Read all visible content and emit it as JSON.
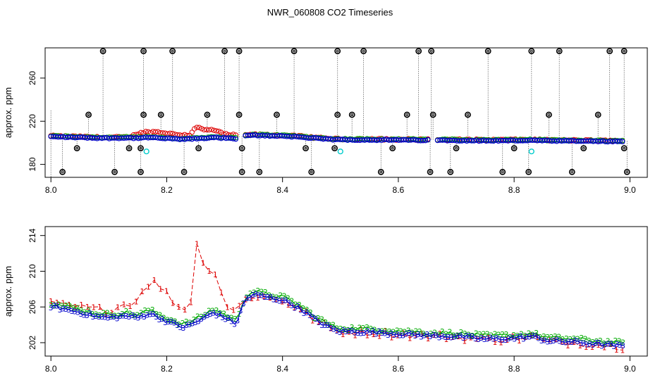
{
  "chart_data": {
    "title": "NWR_060808  CO2 Timeseries",
    "panels": [
      {
        "type": "scatter",
        "ylabel": "approx. ppm",
        "xlim": [
          7.99,
          9.03
        ],
        "ylim": [
          168,
          288
        ],
        "x_ticks": [
          "8.0",
          "8.2",
          "8.4",
          "8.6",
          "8.8",
          "9.0"
        ],
        "y_ticks": [
          "180",
          "220",
          "260"
        ],
        "colors": {
          "line": "#666666",
          "s1": "#dd0000",
          "s2": "#00aa00",
          "s3": "#0000cc",
          "flag": "#000000",
          "cyan": "#00cccc"
        },
        "flag_high": [
          8.09,
          8.16,
          8.21,
          8.3,
          8.325,
          8.42,
          8.495,
          8.54,
          8.635,
          8.657,
          8.755,
          8.83,
          8.878,
          8.965,
          8.99
        ],
        "flag_mid": [
          8.065,
          8.16,
          8.19,
          8.27,
          8.325,
          8.39,
          8.495,
          8.52,
          8.615,
          8.66,
          8.72,
          8.86,
          8.945
        ],
        "flag_low": [
          8.02,
          8.11,
          8.155,
          8.23,
          8.33,
          8.36,
          8.45,
          8.57,
          8.655,
          8.69,
          8.78,
          8.825,
          8.9,
          8.995
        ],
        "flag_dip": [
          8.045,
          8.135,
          8.155,
          8.255,
          8.33,
          8.44,
          8.49,
          8.59,
          8.7,
          8.8,
          8.92,
          8.99
        ],
        "cyan_points": [
          {
            "x": 8.165,
            "y": 192
          },
          {
            "x": 8.5,
            "y": 192
          },
          {
            "x": 8.83,
            "y": 192
          }
        ]
      },
      {
        "type": "line",
        "ylabel": "approx. ppm",
        "xlim": [
          7.99,
          9.03
        ],
        "ylim": [
          200.5,
          215
        ],
        "x_ticks": [
          "8.0",
          "8.2",
          "8.4",
          "8.6",
          "8.8",
          "9.0"
        ],
        "y_ticks": [
          "202",
          "206",
          "210",
          "214"
        ],
        "markers": [
          "1",
          "2",
          "3"
        ],
        "colors": {
          "s1": "#dd0000",
          "s2": "#00aa00",
          "s3": "#0000cc"
        },
        "baseline_knots": [
          [
            8.0,
            206.3
          ],
          [
            8.02,
            206.0
          ],
          [
            8.05,
            205.6
          ],
          [
            8.08,
            205.1
          ],
          [
            8.1,
            205.0
          ],
          [
            8.13,
            205.2
          ],
          [
            8.15,
            205.0
          ],
          [
            8.17,
            205.5
          ],
          [
            8.2,
            204.6
          ],
          [
            8.23,
            203.9
          ],
          [
            8.26,
            204.8
          ],
          [
            8.28,
            205.6
          ],
          [
            8.3,
            205.0
          ],
          [
            8.32,
            204.3
          ],
          [
            8.335,
            207.0
          ],
          [
            8.35,
            207.6
          ],
          [
            8.38,
            207.2
          ],
          [
            8.4,
            207.0
          ],
          [
            8.43,
            206.0
          ],
          [
            8.46,
            204.6
          ],
          [
            8.49,
            203.6
          ],
          [
            8.5,
            203.5
          ],
          [
            8.55,
            203.4
          ],
          [
            8.6,
            203.2
          ],
          [
            8.65,
            203.0
          ],
          [
            8.7,
            202.9
          ],
          [
            8.75,
            202.6
          ],
          [
            8.8,
            202.7
          ],
          [
            8.83,
            202.9
          ],
          [
            8.86,
            202.4
          ],
          [
            8.9,
            202.3
          ],
          [
            8.95,
            202.0
          ],
          [
            8.99,
            201.8
          ]
        ],
        "series1_knots": [
          [
            8.0,
            206.3
          ],
          [
            8.1,
            205.6
          ],
          [
            8.13,
            206.4
          ],
          [
            8.15,
            206.6
          ],
          [
            8.16,
            208.4
          ],
          [
            8.18,
            208.8
          ],
          [
            8.2,
            207.5
          ],
          [
            8.22,
            206.0
          ],
          [
            8.24,
            205.6
          ],
          [
            8.25,
            213.6
          ],
          [
            8.265,
            210.2
          ],
          [
            8.28,
            210.6
          ],
          [
            8.3,
            206.4
          ],
          [
            8.32,
            205.4
          ],
          [
            8.335,
            207.0
          ],
          [
            8.99,
            201.5
          ]
        ]
      }
    ]
  }
}
